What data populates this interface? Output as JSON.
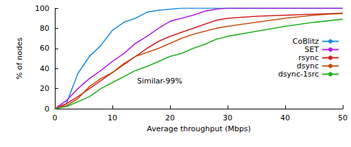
{
  "chart_data": {
    "type": "line",
    "x_label": "Average throughput (Mbps)",
    "y_label": "% of nodes",
    "annotation": "Similar-99%",
    "x": [
      0,
      2,
      4,
      6,
      8,
      10,
      12,
      14,
      16,
      18,
      20,
      22,
      24,
      26,
      28,
      30,
      35,
      40,
      45,
      50
    ],
    "series": [
      {
        "name": "CoBlitz",
        "color": "#1f8fe0",
        "values": [
          0,
          5,
          35,
          52,
          63,
          78,
          86,
          90,
          96,
          98,
          99,
          100,
          100,
          100,
          100,
          100,
          100,
          100,
          100,
          100
        ]
      },
      {
        "name": "SET",
        "color": "#b020e0",
        "values": [
          0,
          8,
          20,
          30,
          38,
          47,
          55,
          65,
          72,
          80,
          87,
          90,
          93,
          97,
          99,
          100,
          100,
          100,
          100,
          100
        ]
      },
      {
        "name": "rsync",
        "color": "#d42020",
        "values": [
          0,
          5,
          12,
          20,
          28,
          36,
          44,
          52,
          60,
          67,
          72,
          76,
          80,
          84,
          88,
          90,
          92,
          93,
          94,
          95
        ]
      },
      {
        "name": "dsync",
        "color": "#c05010",
        "values": [
          0,
          3,
          10,
          22,
          30,
          36,
          45,
          52,
          56,
          60,
          65,
          70,
          74,
          77,
          80,
          82,
          86,
          90,
          93,
          95
        ]
      },
      {
        "name": "dsync-1src",
        "color": "#20b020",
        "values": [
          0,
          2,
          7,
          12,
          20,
          26,
          32,
          38,
          42,
          47,
          52,
          55,
          60,
          64,
          69,
          72,
          77,
          82,
          86,
          89
        ]
      }
    ],
    "xlim": [
      0,
      50
    ],
    "xticks": [
      0,
      10,
      20,
      30,
      40,
      50
    ],
    "ylim": [
      0,
      100
    ],
    "yticks": [
      0,
      20,
      40,
      60,
      80,
      100
    ],
    "grid": false,
    "legend": "right"
  }
}
